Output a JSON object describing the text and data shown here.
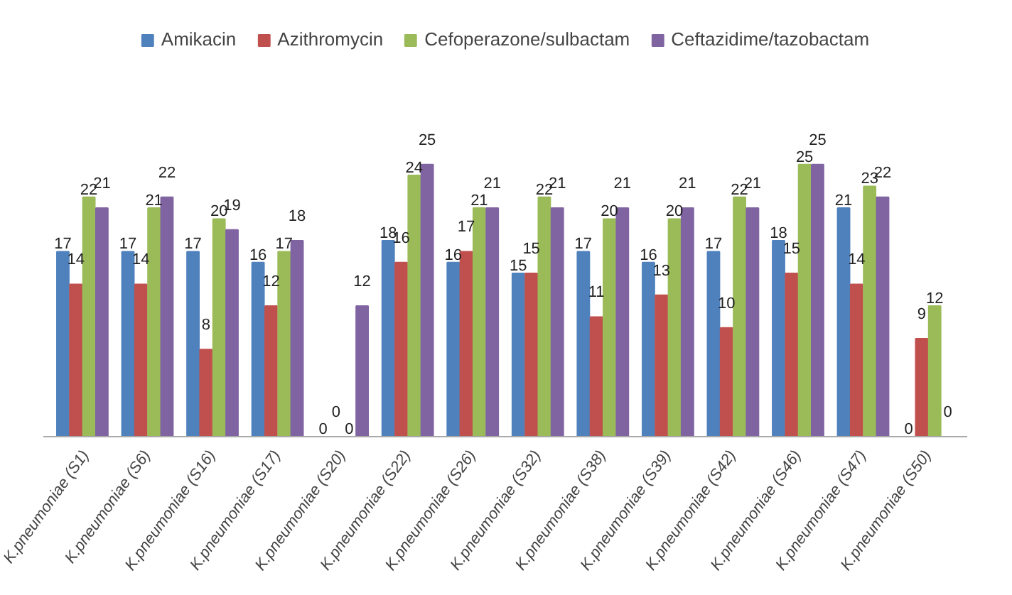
{
  "chart_data": {
    "type": "bar",
    "categories": [
      "K.pneumoniae (S1)",
      "K.pneumoniae (S6)",
      "K.pneumoniae (S16)",
      "K.pneumoniae (S17)",
      "K.pneumoniae (S20)",
      "K.pneumoniae (S22)",
      "K.pneumoniae (S26)",
      "K.pneumoniae (S32)",
      "K.pneumoniae (S38)",
      "K.pneumoniae (S39)",
      "K.pneumoniae (S42)",
      "K.pneumoniae (S46)",
      "K.pneumoniae (S47)",
      "K.pneumoniae (S50)"
    ],
    "series": [
      {
        "name": "Amikacin",
        "color": "#4f81bd",
        "values": [
          17,
          17,
          17,
          16,
          0,
          18,
          16,
          15,
          17,
          16,
          17,
          18,
          21,
          0
        ]
      },
      {
        "name": "Azithromycin",
        "color": "#c0504d",
        "values": [
          14,
          14,
          8,
          12,
          0,
          16,
          17,
          15,
          11,
          13,
          10,
          15,
          14,
          9
        ]
      },
      {
        "name": "Cefoperazone/sulbactam",
        "color": "#9bbb59",
        "values": [
          22,
          21,
          20,
          17,
          0,
          24,
          21,
          22,
          20,
          20,
          22,
          25,
          23,
          12
        ]
      },
      {
        "name": "Ceftazidime/tazobactam",
        "color": "#8064a2",
        "values": [
          21,
          22,
          19,
          18,
          12,
          25,
          21,
          21,
          21,
          21,
          21,
          25,
          22,
          0
        ]
      }
    ],
    "data_labels": true,
    "legend": "top",
    "grid": false
  }
}
